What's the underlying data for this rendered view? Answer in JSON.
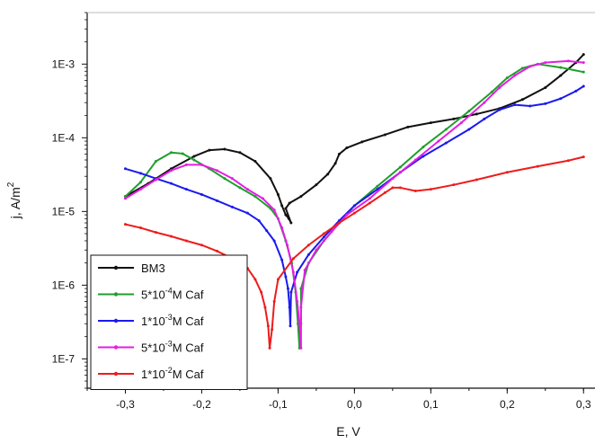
{
  "chart_data": {
    "type": "line",
    "xlabel": "E, V",
    "ylabel_main": "j, A/m",
    "ylabel_sup": "2",
    "xlim": [
      -0.35,
      0.315
    ],
    "ylim": [
      4e-08,
      0.005
    ],
    "yscale": "log",
    "grid": false,
    "legend_position": "bottom-left",
    "x_ticks": [
      {
        "value": -0.3,
        "label": "-0,3"
      },
      {
        "value": -0.2,
        "label": "-0,2"
      },
      {
        "value": -0.1,
        "label": "-0,1"
      },
      {
        "value": 0.0,
        "label": "0,0"
      },
      {
        "value": 0.1,
        "label": "0,1"
      },
      {
        "value": 0.2,
        "label": "0,2"
      },
      {
        "value": 0.3,
        "label": "0,3"
      }
    ],
    "y_ticks": [
      {
        "value": 1e-07,
        "label": "1E-7"
      },
      {
        "value": 1e-06,
        "label": "1E-6"
      },
      {
        "value": 1e-05,
        "label": "1E-5"
      },
      {
        "value": 0.0001,
        "label": "1E-4"
      },
      {
        "value": 0.001,
        "label": "1E-3"
      }
    ],
    "series": [
      {
        "name": "BM3",
        "legend_parts": [
          "BM3"
        ],
        "color": "#111111",
        "points": [
          [
            -0.3,
            1.6e-05
          ],
          [
            -0.27,
            2.4e-05
          ],
          [
            -0.24,
            3.8e-05
          ],
          [
            -0.21,
            5.6e-05
          ],
          [
            -0.19,
            6.8e-05
          ],
          [
            -0.17,
            7e-05
          ],
          [
            -0.15,
            6.3e-05
          ],
          [
            -0.13,
            4.8e-05
          ],
          [
            -0.11,
            2.8e-05
          ],
          [
            -0.1,
            1.7e-05
          ],
          [
            -0.095,
            1.2e-05
          ],
          [
            -0.09,
            9e-06
          ],
          [
            -0.086,
            8e-06
          ],
          [
            -0.083,
            7e-06
          ],
          [
            -0.09,
            1.1e-05
          ],
          [
            -0.085,
            1.3e-05
          ],
          [
            -0.07,
            1.6e-05
          ],
          [
            -0.05,
            2.3e-05
          ],
          [
            -0.035,
            3.2e-05
          ],
          [
            -0.025,
            4.5e-05
          ],
          [
            -0.02,
            6e-05
          ],
          [
            -0.01,
            7.3e-05
          ],
          [
            0.01,
            8.8e-05
          ],
          [
            0.04,
            0.00011
          ],
          [
            0.07,
            0.00014
          ],
          [
            0.1,
            0.00016
          ],
          [
            0.13,
            0.00018
          ],
          [
            0.16,
            0.00021
          ],
          [
            0.19,
            0.00025
          ],
          [
            0.22,
            0.00033
          ],
          [
            0.25,
            0.00048
          ],
          [
            0.27,
            0.0007
          ],
          [
            0.29,
            0.00105
          ],
          [
            0.3,
            0.00135
          ]
        ]
      },
      {
        "name": "5*10^-4M Caf",
        "legend_parts": [
          "5*10",
          "-4",
          "M Caf"
        ],
        "color": "#1f9e2c",
        "points": [
          [
            -0.3,
            1.6e-05
          ],
          [
            -0.28,
            2.5e-05
          ],
          [
            -0.26,
            4.8e-05
          ],
          [
            -0.24,
            6.3e-05
          ],
          [
            -0.225,
            6.1e-05
          ],
          [
            -0.21,
            5e-05
          ],
          [
            -0.19,
            3.8e-05
          ],
          [
            -0.17,
            2.8e-05
          ],
          [
            -0.15,
            2.1e-05
          ],
          [
            -0.13,
            1.6e-05
          ],
          [
            -0.11,
            1.1e-05
          ],
          [
            -0.1,
            8e-06
          ],
          [
            -0.09,
            4e-06
          ],
          [
            -0.082,
            2e-06
          ],
          [
            -0.077,
            8e-07
          ],
          [
            -0.074,
            3e-07
          ],
          [
            -0.072,
            1.4e-07
          ],
          [
            -0.07,
            3e-07
          ],
          [
            -0.07,
            9e-07
          ],
          [
            -0.06,
            2e-06
          ],
          [
            -0.04,
            4e-06
          ],
          [
            -0.02,
            7e-06
          ],
          [
            0.0,
            1.2e-05
          ],
          [
            0.03,
            2.2e-05
          ],
          [
            0.06,
            4e-05
          ],
          [
            0.09,
            7.5e-05
          ],
          [
            0.12,
            0.00013
          ],
          [
            0.15,
            0.00023
          ],
          [
            0.18,
            0.00042
          ],
          [
            0.2,
            0.00065
          ],
          [
            0.22,
            0.00088
          ],
          [
            0.24,
            0.001
          ],
          [
            0.27,
            0.0009
          ],
          [
            0.3,
            0.00078
          ]
        ]
      },
      {
        "name": "1*10^-3M Caf",
        "legend_parts": [
          "1*10",
          "-3",
          "M Caf"
        ],
        "color": "#1a1aee",
        "points": [
          [
            -0.3,
            3.8e-05
          ],
          [
            -0.28,
            3.3e-05
          ],
          [
            -0.26,
            2.8e-05
          ],
          [
            -0.24,
            2.4e-05
          ],
          [
            -0.22,
            2e-05
          ],
          [
            -0.2,
            1.7e-05
          ],
          [
            -0.18,
            1.4e-05
          ],
          [
            -0.16,
            1.15e-05
          ],
          [
            -0.14,
            9.5e-06
          ],
          [
            -0.125,
            7.5e-06
          ],
          [
            -0.115,
            5.5e-06
          ],
          [
            -0.105,
            4e-06
          ],
          [
            -0.095,
            2.2e-06
          ],
          [
            -0.09,
            1.3e-06
          ],
          [
            -0.087,
            9e-07
          ],
          [
            -0.085,
            5e-07
          ],
          [
            -0.084,
            2.8e-07
          ],
          [
            -0.083,
            8e-07
          ],
          [
            -0.075,
            1.5e-06
          ],
          [
            -0.06,
            2.6e-06
          ],
          [
            -0.04,
            4.5e-06
          ],
          [
            -0.02,
            7.5e-06
          ],
          [
            0.0,
            1.2e-05
          ],
          [
            0.03,
            2e-05
          ],
          [
            0.06,
            3.4e-05
          ],
          [
            0.09,
            5.6e-05
          ],
          [
            0.12,
            8.5e-05
          ],
          [
            0.15,
            0.00013
          ],
          [
            0.17,
            0.00018
          ],
          [
            0.19,
            0.00024
          ],
          [
            0.21,
            0.00028
          ],
          [
            0.23,
            0.00027
          ],
          [
            0.25,
            0.00029
          ],
          [
            0.27,
            0.00034
          ],
          [
            0.29,
            0.00043
          ],
          [
            0.3,
            0.0005
          ]
        ]
      },
      {
        "name": "5*10^-3M Caf",
        "legend_parts": [
          "5*10",
          "-3",
          "M Caf"
        ],
        "color": "#e41ee4",
        "points": [
          [
            -0.3,
            1.5e-05
          ],
          [
            -0.28,
            2e-05
          ],
          [
            -0.26,
            2.7e-05
          ],
          [
            -0.24,
            3.6e-05
          ],
          [
            -0.22,
            4.3e-05
          ],
          [
            -0.2,
            4.3e-05
          ],
          [
            -0.18,
            3.6e-05
          ],
          [
            -0.16,
            2.8e-05
          ],
          [
            -0.14,
            2e-05
          ],
          [
            -0.12,
            1.5e-05
          ],
          [
            -0.105,
            1.05e-05
          ],
          [
            -0.095,
            6e-06
          ],
          [
            -0.088,
            3.5e-06
          ],
          [
            -0.08,
            1.5e-06
          ],
          [
            -0.075,
            6e-07
          ],
          [
            -0.072,
            3e-07
          ],
          [
            -0.07,
            1.4e-07
          ],
          [
            -0.07,
            5e-07
          ],
          [
            -0.065,
            1.6e-06
          ],
          [
            -0.05,
            3e-06
          ],
          [
            -0.03,
            5.3e-06
          ],
          [
            -0.01,
            9e-06
          ],
          [
            0.02,
            1.5e-05
          ],
          [
            0.05,
            2.8e-05
          ],
          [
            0.08,
            5e-05
          ],
          [
            0.11,
            9e-05
          ],
          [
            0.14,
            0.00016
          ],
          [
            0.17,
            0.0003
          ],
          [
            0.19,
            0.00048
          ],
          [
            0.21,
            0.0007
          ],
          [
            0.23,
            0.00093
          ],
          [
            0.25,
            0.00105
          ],
          [
            0.28,
            0.0011
          ],
          [
            0.3,
            0.00105
          ]
        ]
      },
      {
        "name": "1*10^-2M Caf",
        "legend_parts": [
          "1*10",
          "-2",
          "M Caf"
        ],
        "color": "#ee1c1c",
        "points": [
          [
            -0.3,
            6.7e-06
          ],
          [
            -0.28,
            6e-06
          ],
          [
            -0.26,
            5.2e-06
          ],
          [
            -0.24,
            4.6e-06
          ],
          [
            -0.22,
            4e-06
          ],
          [
            -0.2,
            3.5e-06
          ],
          [
            -0.18,
            2.9e-06
          ],
          [
            -0.16,
            2.3e-06
          ],
          [
            -0.14,
            1.7e-06
          ],
          [
            -0.13,
            1.2e-06
          ],
          [
            -0.122,
            8e-07
          ],
          [
            -0.117,
            5e-07
          ],
          [
            -0.113,
            2.8e-07
          ],
          [
            -0.111,
            1.4e-07
          ],
          [
            -0.108,
            2.5e-07
          ],
          [
            -0.105,
            6e-07
          ],
          [
            -0.1,
            1.2e-06
          ],
          [
            -0.08,
            2.3e-06
          ],
          [
            -0.06,
            3.5e-06
          ],
          [
            -0.04,
            5e-06
          ],
          [
            -0.02,
            7e-06
          ],
          [
            0.0,
            9.5e-06
          ],
          [
            0.02,
            1.3e-05
          ],
          [
            0.04,
            1.8e-05
          ],
          [
            0.05,
            2.1e-05
          ],
          [
            0.06,
            2.1e-05
          ],
          [
            0.08,
            1.9e-05
          ],
          [
            0.1,
            2e-05
          ],
          [
            0.13,
            2.3e-05
          ],
          [
            0.16,
            2.7e-05
          ],
          [
            0.2,
            3.4e-05
          ],
          [
            0.24,
            4.1e-05
          ],
          [
            0.28,
            4.9e-05
          ],
          [
            0.3,
            5.5e-05
          ]
        ]
      }
    ]
  }
}
